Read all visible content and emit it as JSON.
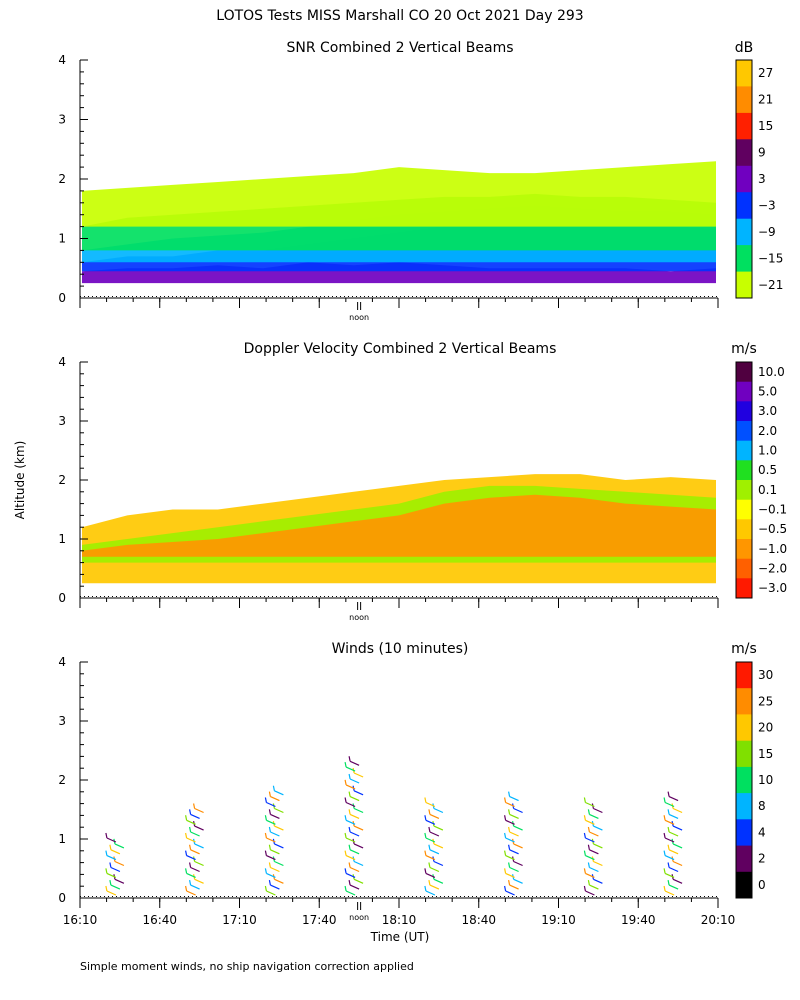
{
  "figure": {
    "title": "LOTOS Tests MISS Marshall CO  20 Oct 2021 Day 293",
    "footnote": "Simple moment winds, no ship navigation correction applied",
    "ylabel": "Altitude (km)",
    "xlabel": "Time (UT)",
    "noon_label": "noon"
  },
  "chart_data": [
    {
      "type": "heatmap",
      "title": "SNR Combined 2 Vertical Beams",
      "colorbar_unit": "dB",
      "colorbar_labels": [
        "27",
        "21",
        "15",
        "9",
        "3",
        "−3",
        "−9",
        "−15",
        "−21"
      ],
      "colorbar_colors": [
        "#ffc800",
        "#ff8c00",
        "#ff2000",
        "#600060",
        "#7000c0",
        "#0032ff",
        "#00b4ff",
        "#00e060",
        "#c8ff00"
      ],
      "ylim": [
        0,
        4
      ],
      "yticks": [
        "0",
        "1",
        "2",
        "3",
        "4"
      ],
      "xlim": [
        "16:10",
        "20:10"
      ],
      "layers": [
        {
          "bottom": 0.25,
          "top": [
            0.45,
            0.5,
            0.5,
            0.55,
            0.5,
            0.6,
            0.55,
            0.6,
            0.55,
            0.5,
            0.5,
            0.5,
            0.5,
            0.45,
            0.5
          ],
          "color": "#7000c0"
        },
        {
          "bottom": 0.45,
          "top": [
            0.6,
            0.7,
            0.7,
            0.8,
            0.8,
            0.9,
            1.0,
            1.1,
            1.2,
            1.25,
            1.3,
            1.25,
            1.2,
            1.2,
            1.15
          ],
          "color": "#0032ff"
        },
        {
          "bottom": 0.6,
          "top": [
            0.8,
            0.9,
            1.0,
            1.05,
            1.1,
            1.2,
            1.3,
            1.4,
            1.45,
            1.5,
            1.55,
            1.5,
            1.45,
            1.45,
            1.4
          ],
          "color": "#00b4ff"
        },
        {
          "bottom": 0.8,
          "top": [
            1.2,
            1.35,
            1.4,
            1.45,
            1.5,
            1.55,
            1.6,
            1.65,
            1.7,
            1.7,
            1.75,
            1.7,
            1.7,
            1.65,
            1.6
          ],
          "color": "#00e060"
        },
        {
          "bottom": 1.2,
          "top": [
            1.8,
            1.85,
            1.9,
            1.95,
            2.0,
            2.05,
            2.1,
            2.2,
            2.15,
            2.1,
            2.1,
            2.15,
            2.2,
            2.25,
            2.3
          ],
          "color": "#c8ff00"
        }
      ]
    },
    {
      "type": "heatmap",
      "title": "Doppler Velocity Combined 2 Vertical Beams",
      "colorbar_unit": "m/s",
      "colorbar_labels": [
        "10.0",
        "5.0",
        "3.0",
        "2.0",
        "1.0",
        "0.5",
        "0.1",
        "−0.1",
        "−0.5",
        "−1.0",
        "−2.0",
        "−3.0"
      ],
      "colorbar_colors": [
        "#500040",
        "#7000c0",
        "#2000e0",
        "#0050ff",
        "#00b4ff",
        "#20e020",
        "#a0f000",
        "#ffff00",
        "#ffc800",
        "#ff9600",
        "#ff6000",
        "#ff1a00"
      ],
      "ylim": [
        0,
        4
      ],
      "yticks": [
        "0",
        "1",
        "2",
        "3",
        "4"
      ],
      "xlim": [
        "16:10",
        "20:10"
      ],
      "layers": [
        {
          "bottom": 0.25,
          "top": [
            1.2,
            1.4,
            1.5,
            1.5,
            1.6,
            1.7,
            1.8,
            1.9,
            2.0,
            2.05,
            2.1,
            2.1,
            2.0,
            2.05,
            2.0
          ],
          "color": "#ffc800"
        },
        {
          "bottom": 0.6,
          "top": [
            0.9,
            1.0,
            1.1,
            1.2,
            1.3,
            1.4,
            1.5,
            1.6,
            1.8,
            1.9,
            1.9,
            1.85,
            1.8,
            1.75,
            1.7
          ],
          "color": "#a0f000"
        },
        {
          "bottom": 0.7,
          "top": [
            0.8,
            0.9,
            0.95,
            1.0,
            1.1,
            1.2,
            1.3,
            1.4,
            1.6,
            1.7,
            1.75,
            1.7,
            1.6,
            1.55,
            1.5
          ],
          "color": "#ff9600"
        }
      ]
    },
    {
      "type": "scatter",
      "title": "Winds (10 minutes)",
      "colorbar_unit": "m/s",
      "colorbar_labels": [
        "30",
        "25",
        "20",
        "15",
        "10",
        "8",
        "4",
        "2",
        "0"
      ],
      "colorbar_colors": [
        "#ff1a00",
        "#ff8c00",
        "#ffc800",
        "#80e000",
        "#00e060",
        "#00b4ff",
        "#0032ff",
        "#600060",
        "#000000"
      ],
      "ylim": [
        0,
        4
      ],
      "yticks": [
        "0",
        "1",
        "2",
        "3",
        "4"
      ],
      "xlim": [
        "16:10",
        "20:10"
      ],
      "xticks": [
        "16:10",
        "16:40",
        "17:10",
        "17:40",
        "18:10",
        "18:40",
        "19:10",
        "19:40",
        "20:10"
      ],
      "profile_times": [
        "16:25",
        "16:55",
        "17:25",
        "17:55",
        "18:25",
        "18:55",
        "19:25",
        "19:55"
      ],
      "profile_tops": [
        1.0,
        1.5,
        1.8,
        2.3,
        1.6,
        1.7,
        1.6,
        1.75
      ]
    }
  ]
}
